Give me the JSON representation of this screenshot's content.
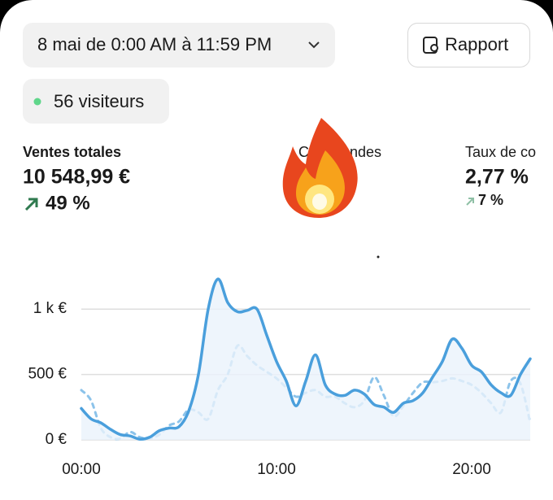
{
  "date_filter": "8 mai de 0:00 AM à 11:59 PM",
  "report_button": "Rapport",
  "visitors": "56 visiteurs",
  "metrics": [
    {
      "label": "Ventes totales",
      "value": "10 548,99 €",
      "change": "49 %"
    },
    {
      "label": "Commandes"
    },
    {
      "label": "Taux de co",
      "value": "2,77 %",
      "change": "7 %"
    }
  ],
  "chart_data": {
    "type": "line",
    "x": [
      0,
      0.5,
      1,
      1.5,
      2,
      2.5,
      3,
      3.5,
      4,
      4.5,
      5,
      5.5,
      6,
      6.5,
      7,
      7.5,
      8,
      8.5,
      9,
      9.5,
      10,
      10.5,
      11,
      11.5,
      12,
      12.5,
      13,
      13.5,
      14,
      14.5,
      15,
      15.5,
      16,
      16.5,
      17,
      17.5,
      18,
      18.5,
      19,
      19.5,
      20,
      20.5,
      21,
      21.5,
      22,
      22.5,
      23
    ],
    "series": [
      {
        "color": "#4a9fdc",
        "values": [
          240,
          160,
          130,
          80,
          40,
          30,
          5,
          20,
          70,
          90,
          100,
          220,
          500,
          1000,
          1230,
          1050,
          980,
          990,
          1000,
          800,
          600,
          450,
          260,
          450,
          650,
          420,
          350,
          340,
          380,
          350,
          270,
          250,
          210,
          280,
          300,
          360,
          480,
          600,
          770,
          700,
          570,
          520,
          420,
          360,
          340,
          500,
          620
        ]
      },
      {
        "color": "#8cc3ea",
        "dashed": true,
        "values": [
          380,
          300,
          90,
          20,
          10,
          60,
          20,
          10,
          40,
          110,
          140,
          230,
          210,
          160,
          380,
          500,
          720,
          640,
          570,
          520,
          470,
          400,
          330,
          360,
          380,
          330,
          330,
          280,
          250,
          300,
          480,
          340,
          180,
          260,
          360,
          440,
          440,
          450,
          470,
          450,
          420,
          360,
          280,
          210,
          450,
          430,
          130
        ]
      }
    ],
    "xlim": [
      0,
      23
    ],
    "xticks": [
      {
        "value": 0,
        "label": "00:00"
      },
      {
        "value": 10,
        "label": "10:00"
      },
      {
        "value": 20,
        "label": "20:00"
      }
    ],
    "ylim": [
      0,
      1250
    ],
    "yticks": [
      {
        "value": 0,
        "label": "0 €"
      },
      {
        "value": 500,
        "label": "500 €"
      },
      {
        "value": 1000,
        "label": "1 k €"
      }
    ],
    "grid": true
  }
}
